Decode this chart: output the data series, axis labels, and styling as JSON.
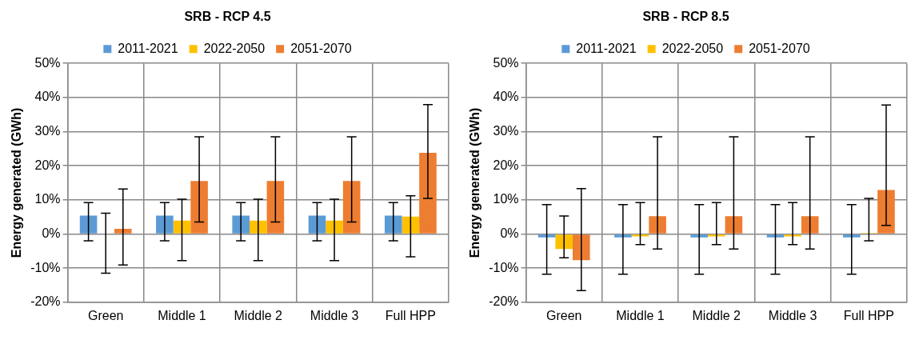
{
  "chart_data": [
    {
      "type": "bar",
      "title": "SRB - RCP 4.5",
      "ylabel": "Energy generated (GWh)",
      "categories": [
        "Green",
        "Middle 1",
        "Middle 2",
        "Middle 3",
        "Full HPP"
      ],
      "series": [
        {
          "name": "2011-2021",
          "color": "#5b9bd5",
          "values": [
            5.4,
            5.4,
            5.4,
            5.4,
            5.4
          ],
          "errors": [
            [
              -2.0,
              9.2
            ],
            [
              -2.0,
              9.2
            ],
            [
              -2.0,
              9.2
            ],
            [
              -2.0,
              9.2
            ],
            [
              -2.0,
              9.2
            ]
          ]
        },
        {
          "name": "2022-2050",
          "color": "#ffc000",
          "values": [
            0,
            3.9,
            3.9,
            3.9,
            5.1
          ],
          "errors": [
            [
              -11.5,
              6.1
            ],
            [
              -7.8,
              10.2
            ],
            [
              -7.8,
              10.2
            ],
            [
              -7.8,
              10.2
            ],
            [
              -6.7,
              11.2
            ]
          ]
        },
        {
          "name": "2051-2070",
          "color": "#ed7d31",
          "values": [
            1.5,
            15.5,
            15.5,
            15.5,
            23.8
          ],
          "errors": [
            [
              -9.1,
              13.2
            ],
            [
              3.5,
              28.5
            ],
            [
              3.5,
              28.5
            ],
            [
              3.5,
              28.5
            ],
            [
              10.4,
              37.9
            ]
          ]
        }
      ],
      "ylim": [
        -20,
        50
      ],
      "yticks": [
        {
          "value": -20,
          "label": "-20%"
        },
        {
          "value": -10,
          "label": "-10%"
        },
        {
          "value": 0,
          "label": "0%"
        },
        {
          "value": 10,
          "label": "10%"
        },
        {
          "value": 20,
          "label": "20%"
        },
        {
          "value": 30,
          "label": "30%"
        },
        {
          "value": 40,
          "label": "40%"
        },
        {
          "value": 50,
          "label": "50%"
        }
      ],
      "grid": true,
      "legend": "top"
    },
    {
      "type": "bar",
      "title": "SRB - RCP 8.5",
      "ylabel": "Energy generated (GWh)",
      "categories": [
        "Green",
        "Middle 1",
        "Middle 2",
        "Middle 3",
        "Full HPP"
      ],
      "series": [
        {
          "name": "2011-2021",
          "color": "#5b9bd5",
          "values": [
            -1.0,
            -1.0,
            -1.0,
            -1.0,
            -1.0
          ],
          "errors": [
            [
              -11.8,
              8.6
            ],
            [
              -11.8,
              8.6
            ],
            [
              -11.8,
              8.6
            ],
            [
              -11.8,
              8.6
            ],
            [
              -11.8,
              8.6
            ]
          ]
        },
        {
          "name": "2022-2050",
          "color": "#ffc000",
          "values": [
            -4.4,
            -0.7,
            -0.7,
            -0.7,
            0.3
          ],
          "errors": [
            [
              -7.0,
              5.3
            ],
            [
              -3.1,
              9.2
            ],
            [
              -3.1,
              9.2
            ],
            [
              -3.1,
              9.2
            ],
            [
              -2.0,
              10.4
            ]
          ]
        },
        {
          "name": "2051-2070",
          "color": "#ed7d31",
          "values": [
            -7.7,
            5.2,
            5.2,
            5.2,
            12.9
          ],
          "errors": [
            [
              -16.6,
              13.3
            ],
            [
              -4.4,
              28.5
            ],
            [
              -4.4,
              28.5
            ],
            [
              -4.4,
              28.5
            ],
            [
              2.5,
              37.8
            ]
          ]
        }
      ],
      "ylim": [
        -20,
        50
      ],
      "yticks": [
        {
          "value": -20,
          "label": "-20%"
        },
        {
          "value": -10,
          "label": "-10%"
        },
        {
          "value": 0,
          "label": "0%"
        },
        {
          "value": 10,
          "label": "10%"
        },
        {
          "value": 20,
          "label": "20%"
        },
        {
          "value": 30,
          "label": "30%"
        },
        {
          "value": 40,
          "label": "40%"
        },
        {
          "value": 50,
          "label": "50%"
        }
      ],
      "grid": true,
      "legend": "top"
    }
  ]
}
